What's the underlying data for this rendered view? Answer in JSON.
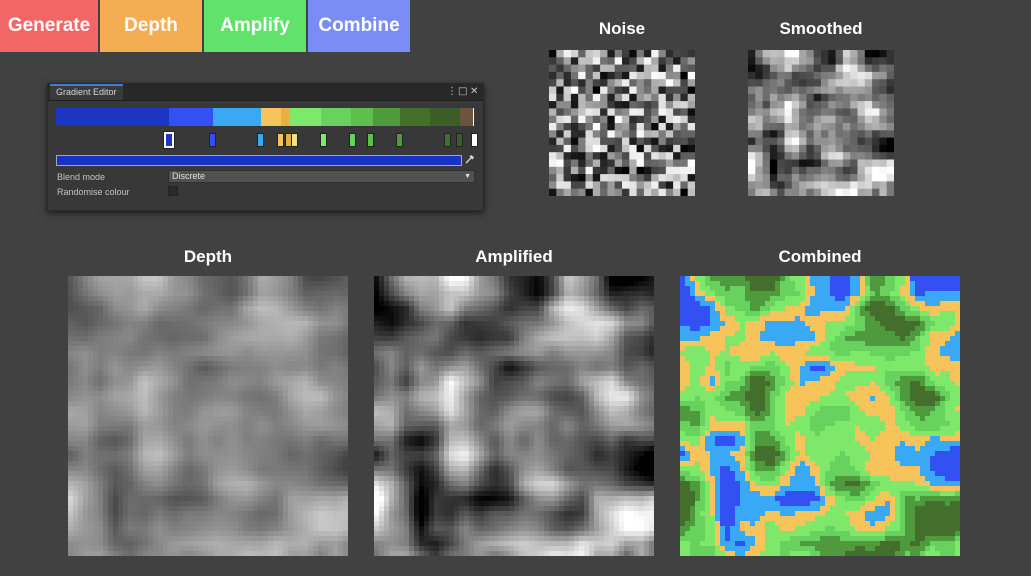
{
  "toolbar": {
    "generate": "Generate",
    "depth": "Depth",
    "amplify": "Amplify",
    "combine": "Combine"
  },
  "labels": {
    "noise": "Noise",
    "smoothed": "Smoothed",
    "depth": "Depth",
    "amplified": "Amplified",
    "combined": "Combined"
  },
  "gradient_editor": {
    "tab_title": "Gradient Editor",
    "menu_icon": "kebab-menu-icon",
    "maximize_icon": "maximize-icon",
    "close_icon": "close-icon",
    "gradient_colors": [
      "#1e35c2",
      "#3350f2",
      "#3aa9f5",
      "#f7c45c",
      "#e8b13f",
      "#7de86a",
      "#67d25d",
      "#5fbf4c",
      "#4f9a3d",
      "#446e2c",
      "#3d5d27",
      "#6b5540"
    ],
    "stop_colors": [
      "#1e35c2",
      "#3350f2",
      "#3aa9f5",
      "#f7c45c",
      "#e8b13f",
      "#7de86a",
      "#67d25d",
      "#5fbf4c",
      "#4f9a3d",
      "#446e2c",
      "#3d5d27",
      "#ffffff"
    ],
    "selected_color": "#1932c2",
    "picker_icon": "eyedropper-icon",
    "blend_mode_label": "Blend mode",
    "blend_mode_value": "Discrete",
    "randomise_label": "Randomise colour",
    "randomise_checked": false
  }
}
